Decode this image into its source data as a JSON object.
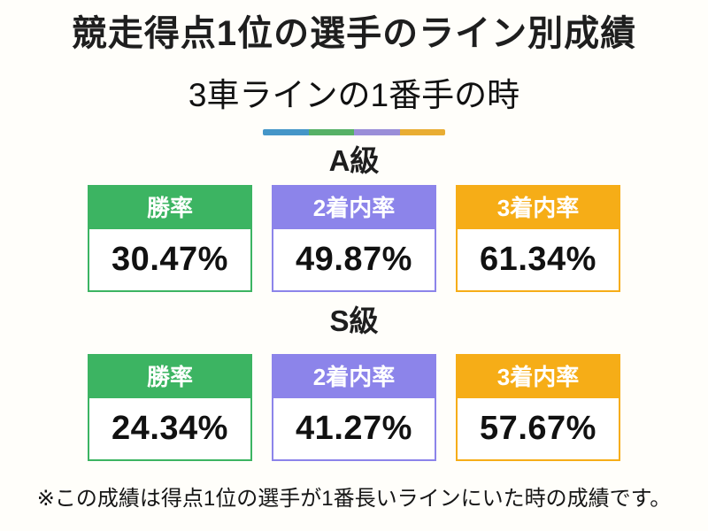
{
  "page": {
    "title": "競走得点1位の選手のライン別成績",
    "subtitle": "3車ラインの1番手の時",
    "footnote": "※この成績は得点1位の選手が1番長いラインにいた時の成績です。"
  },
  "divider_colors": [
    "#4596c8",
    "#57b166",
    "#9a8ed8",
    "#e9ad33"
  ],
  "accent_colors": {
    "win_rate": "#3cb462",
    "top2_rate": "#8c84ea",
    "top3_rate": "#f6ad17"
  },
  "sections": [
    {
      "label": "A級",
      "cards": [
        {
          "metric": "勝率",
          "value": "30.47%",
          "color": "#3cb462"
        },
        {
          "metric": "2着内率",
          "value": "49.87%",
          "color": "#8c84ea"
        },
        {
          "metric": "3着内率",
          "value": "61.34%",
          "color": "#f6ad17"
        }
      ]
    },
    {
      "label": "S級",
      "cards": [
        {
          "metric": "勝率",
          "value": "24.34%",
          "color": "#3cb462"
        },
        {
          "metric": "2着内率",
          "value": "41.27%",
          "color": "#8c84ea"
        },
        {
          "metric": "3着内率",
          "value": "57.67%",
          "color": "#f6ad17"
        }
      ]
    }
  ],
  "chart_data": {
    "type": "table",
    "title": "競走得点1位の選手のライン別成績",
    "subtitle": "3車ラインの1番手の時",
    "columns": [
      "勝率",
      "2着内率",
      "3着内率"
    ],
    "rows": [
      {
        "group": "A級",
        "values": [
          30.47,
          49.87,
          61.34
        ]
      },
      {
        "group": "S級",
        "values": [
          24.34,
          41.27,
          57.67
        ]
      }
    ],
    "unit": "%",
    "note": "※この成績は得点1位の選手が1番長いラインにいた時の成績です。"
  }
}
